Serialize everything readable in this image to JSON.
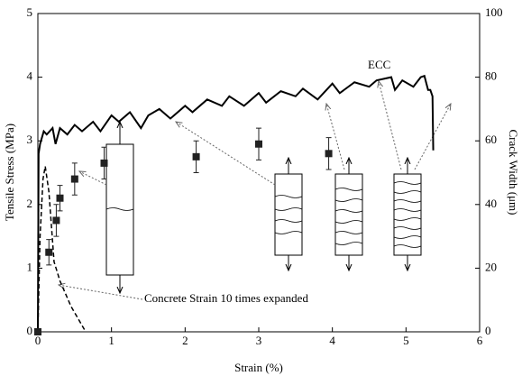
{
  "chart_data": {
    "type": "line",
    "xlabel": "Strain (%)",
    "ylabel": "Tensile Stress (MPa)",
    "y2label": "Crack Width (μm)",
    "annotations": [
      "ECC",
      "Concrete Strain 10 times expanded"
    ],
    "xlim": [
      0,
      6
    ],
    "xticks": [
      0,
      1,
      2,
      3,
      4,
      5,
      6
    ],
    "ylim": [
      0,
      5
    ],
    "yticks": [
      0,
      1,
      2,
      3,
      4,
      5
    ],
    "y2lim": [
      0,
      100
    ],
    "y2ticks": [
      0,
      20,
      40,
      60,
      80,
      100
    ],
    "series": [
      {
        "style": "solid",
        "color": "#000000",
        "x": [
          0,
          0.01,
          0.03,
          0.08,
          0.12,
          0.2,
          0.24,
          0.3,
          0.4,
          0.5,
          0.6,
          0.75,
          0.85,
          1.0,
          1.1,
          1.25,
          1.4,
          1.5,
          1.65,
          1.8,
          2.0,
          2.1,
          2.3,
          2.5,
          2.6,
          2.8,
          3.0,
          3.1,
          3.3,
          3.5,
          3.6,
          3.8,
          4.0,
          4.1,
          4.3,
          4.5,
          4.6,
          4.8,
          4.85,
          4.95,
          5.1,
          5.2,
          5.25,
          5.3,
          5.33,
          5.36,
          5.37
        ],
        "values": [
          0,
          2.8,
          2.95,
          3.15,
          3.1,
          3.2,
          2.95,
          3.2,
          3.1,
          3.25,
          3.15,
          3.3,
          3.15,
          3.4,
          3.3,
          3.45,
          3.2,
          3.4,
          3.5,
          3.35,
          3.55,
          3.45,
          3.65,
          3.55,
          3.7,
          3.55,
          3.75,
          3.6,
          3.78,
          3.7,
          3.82,
          3.65,
          3.9,
          3.75,
          3.92,
          3.85,
          3.95,
          4.0,
          3.8,
          3.95,
          3.85,
          4.0,
          4.02,
          3.8,
          3.8,
          3.7,
          2.85
        ]
      },
      {
        "style": "dashed",
        "color": "#000000",
        "x": [
          0,
          0.03,
          0.07,
          0.1,
          0.15,
          0.22,
          0.3,
          0.45,
          0.65
        ],
        "values": [
          0,
          1.5,
          2.4,
          2.6,
          2.2,
          1.1,
          0.8,
          0.4,
          0
        ]
      },
      {
        "style": "markers",
        "color": "#222222",
        "axis": "y2",
        "x": [
          0,
          0.15,
          0.25,
          0.3,
          0.5,
          0.9,
          2.15,
          3.0,
          3.95
        ],
        "values": [
          0,
          25,
          35,
          42,
          48,
          53,
          55,
          59,
          56
        ],
        "errors": [
          null,
          4,
          5,
          4,
          5,
          5,
          5,
          5,
          5
        ]
      }
    ]
  }
}
